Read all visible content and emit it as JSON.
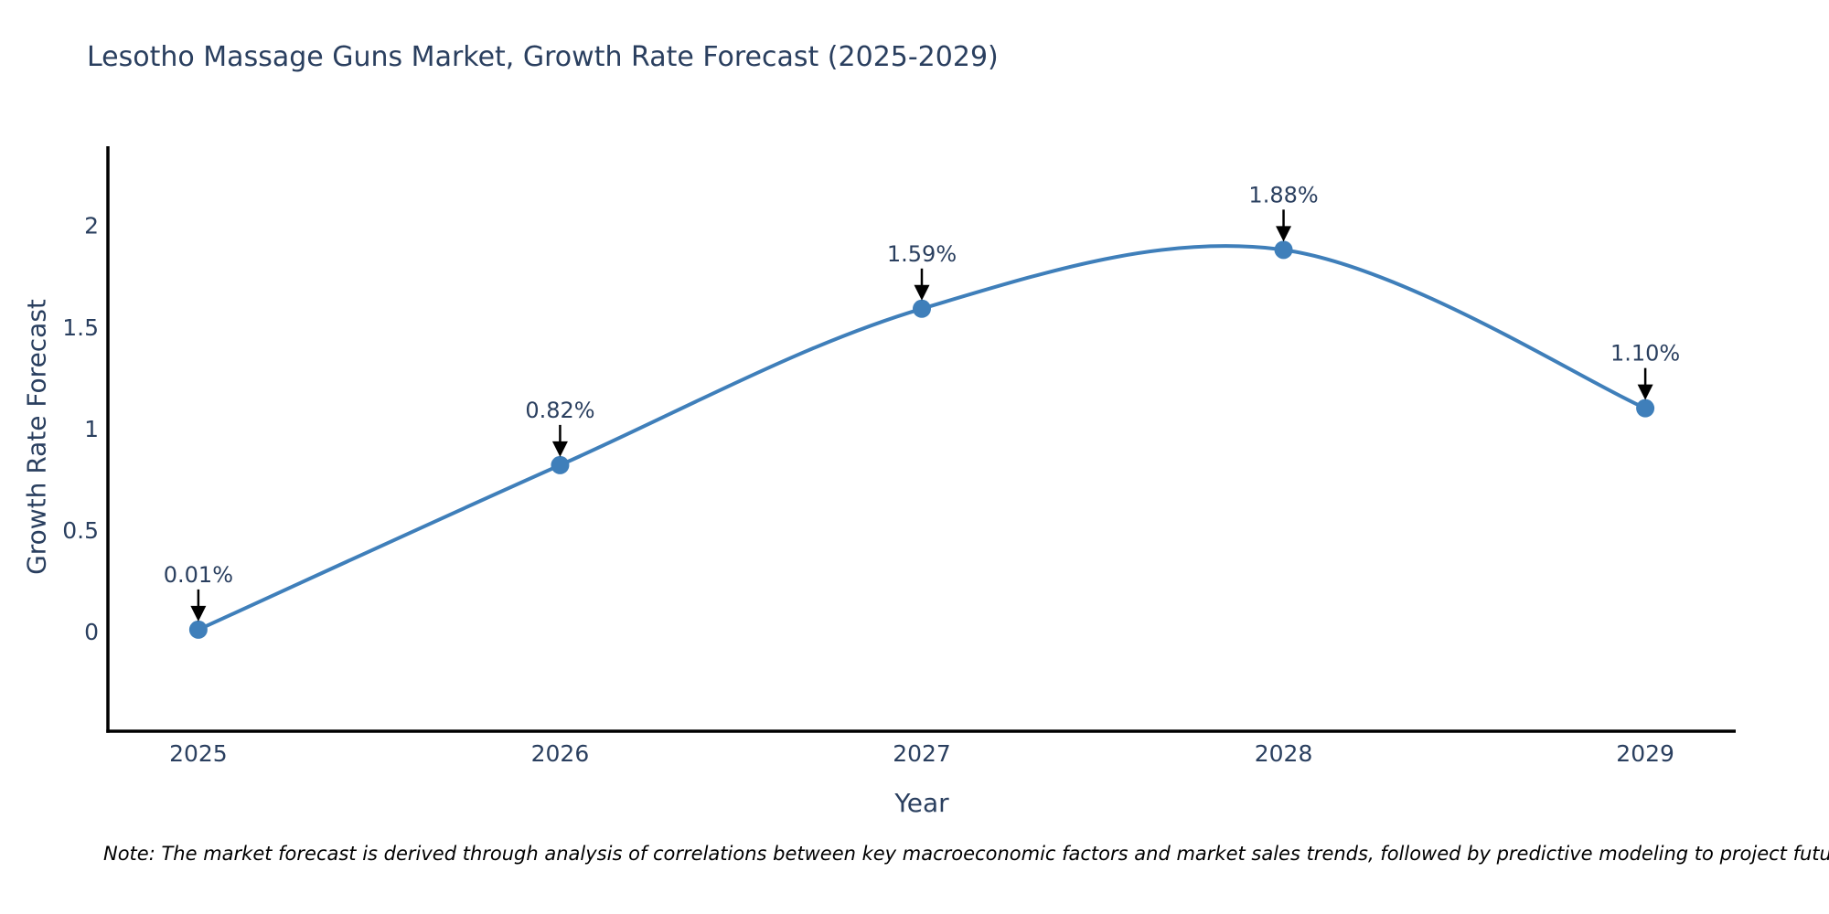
{
  "chart_data": {
    "type": "line",
    "title": "Lesotho Massage Guns Market, Growth Rate Forecast (2025-2029)",
    "xlabel": "Year",
    "ylabel": "Growth Rate Forecast",
    "categories": [
      2025,
      2026,
      2027,
      2028,
      2029
    ],
    "series": [
      {
        "name": "Growth Rate Forecast",
        "values": [
          0.01,
          0.82,
          1.59,
          1.88,
          1.1
        ]
      }
    ],
    "point_labels": [
      "0.01%",
      "0.82%",
      "1.59%",
      "1.88%",
      "1.10%"
    ],
    "xtick_labels": [
      "2025",
      "2026",
      "2027",
      "2028",
      "2029"
    ],
    "yticks": [
      0,
      0.5,
      1,
      1.5,
      2
    ],
    "xlim": [
      2024.75,
      2029.25
    ],
    "ylim": [
      -0.49,
      2.39
    ],
    "grid": false,
    "legend_position": "none",
    "curve": "spline",
    "annotation_style": "value-label-with-down-arrow",
    "note": "Note: The market forecast is derived through analysis of correlations between key macroeconomic factors and market sales trends, followed by predictive modeling to project future sales",
    "colors": {
      "line": "#3f7fba",
      "marker": "#3f7fba",
      "axis_line": "#000000",
      "text": "#2a3f5f",
      "tick_text": "#2a3f5f",
      "arrow": "#000000",
      "note_text": "#000000",
      "background": "#ffffff"
    }
  }
}
